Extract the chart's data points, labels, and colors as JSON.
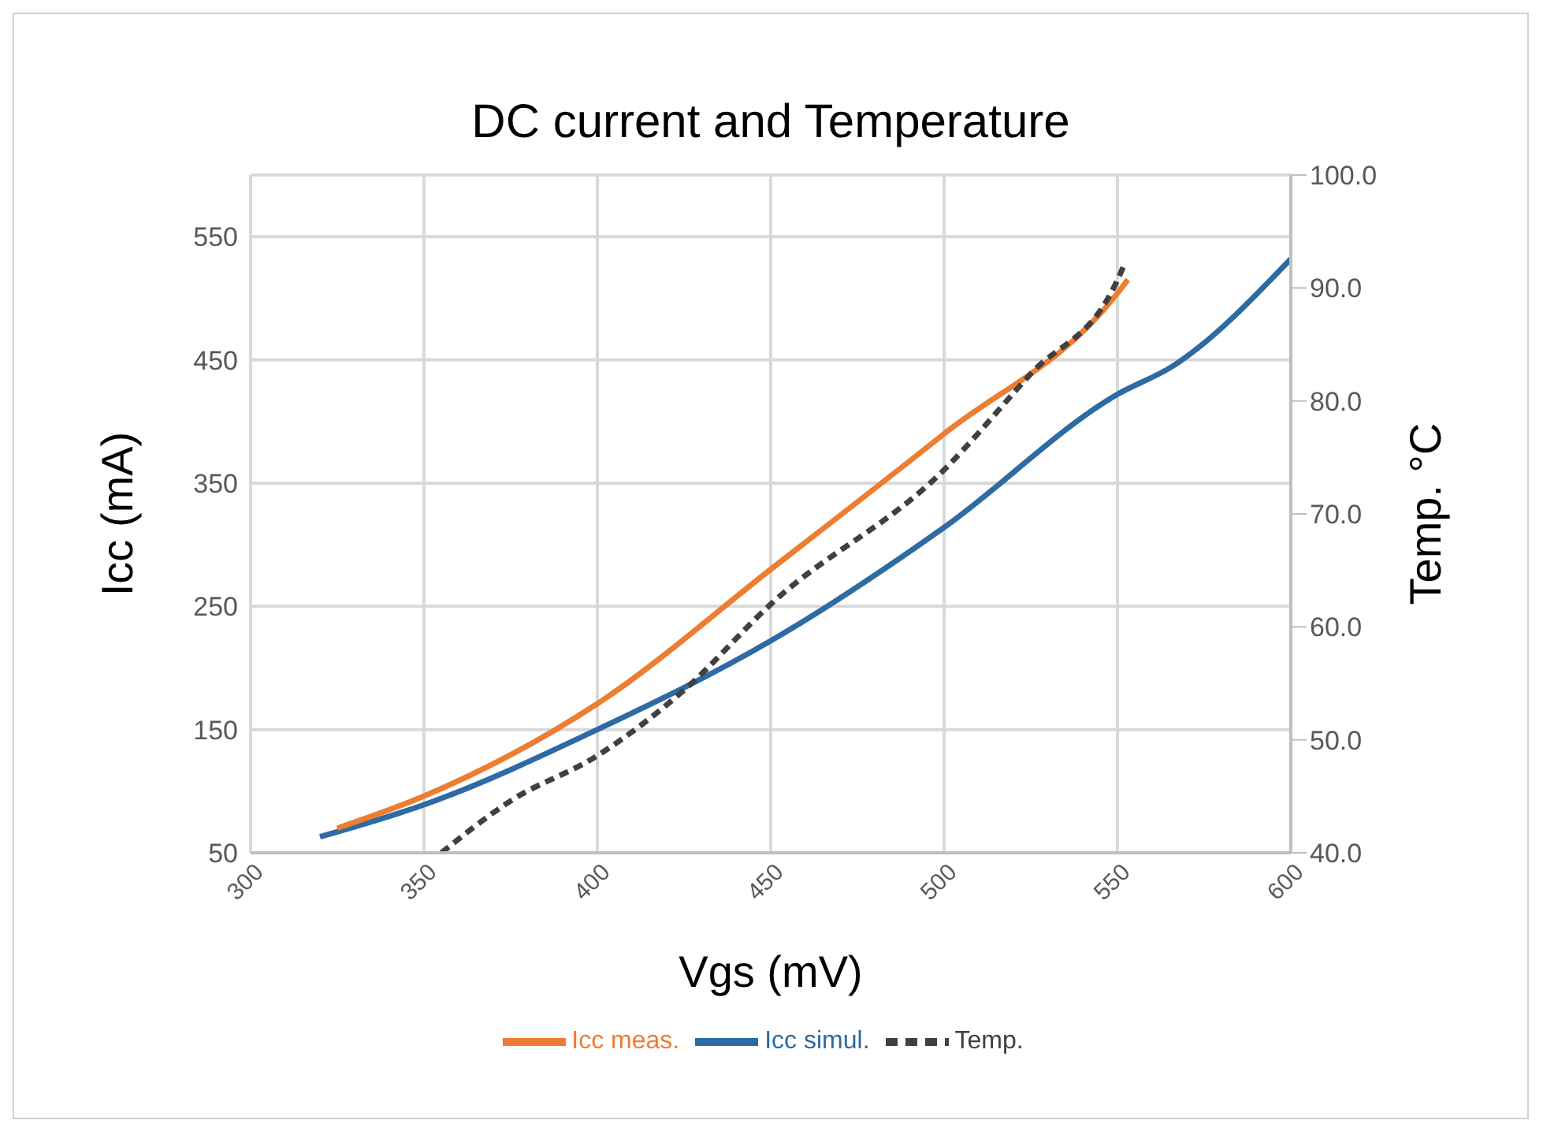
{
  "chart_data": {
    "type": "line",
    "title": "DC current and Temperature",
    "xlabel": "Vgs (mV)",
    "ylabel": "Icc (mA)",
    "y2label": "Temp. °C",
    "xlim": [
      300,
      600
    ],
    "xticks": [
      300,
      350,
      400,
      450,
      500,
      550,
      600
    ],
    "ylim": [
      50,
      600
    ],
    "yticks": [
      50,
      150,
      250,
      350,
      450,
      550
    ],
    "y2lim": [
      40,
      100
    ],
    "y2ticks": [
      {
        "value": 40,
        "label": "40.0"
      },
      {
        "value": 50,
        "label": "50.0"
      },
      {
        "value": 60,
        "label": "60.0"
      },
      {
        "value": 70,
        "label": "70.0"
      },
      {
        "value": 80,
        "label": "80.0"
      },
      {
        "value": 90,
        "label": "90.0"
      },
      {
        "value": 100,
        "label": "100.0"
      }
    ],
    "grid": true,
    "legend": "bottom",
    "marker": "none",
    "series": [
      {
        "name": "Icc simul.",
        "color": "#2e6aa4",
        "line_style": "solid",
        "x": [
          320,
          350,
          400,
          450,
          500,
          550,
          566,
          600
        ],
        "values": [
          63,
          89,
          150,
          222,
          314,
          422,
          445,
          532
        ]
      },
      {
        "name": "Icc meas.",
        "color": "#ed7d31",
        "line_style": "solid",
        "x": [
          325,
          350,
          400,
          450,
          500,
          550,
          553
        ],
        "values": [
          70,
          96,
          171,
          280,
          390,
          504,
          515
        ]
      },
      {
        "name": "Temp.",
        "color": "#404040",
        "line_style": "dashed",
        "axis": "y2",
        "x": [
          355,
          375,
          400,
          425,
          450,
          500,
          525,
          550,
          552
        ],
        "values": [
          40,
          44.6,
          48.6,
          54.4,
          62,
          73.9,
          82.4,
          90.7,
          92.1
        ]
      }
    ]
  }
}
